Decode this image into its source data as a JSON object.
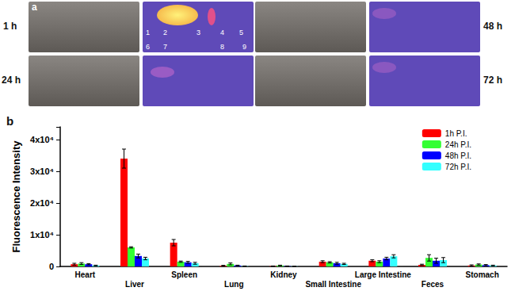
{
  "panel_a": {
    "label": "a",
    "time_labels": [
      "1 h",
      "24 h",
      "48 h",
      "72 h"
    ],
    "organ_numbers": [
      "1",
      "2",
      "3",
      "4",
      "5",
      "6",
      "7",
      "8",
      "9"
    ]
  },
  "chart_data": {
    "type": "bar",
    "panel_label": "b",
    "y_label": "Fluorescence Intensity",
    "categories": [
      "Heart",
      "Liver",
      "Spleen",
      "Lung",
      "Kidney",
      "Small Intestine",
      "Large Intestine",
      "Feces",
      "Stomach"
    ],
    "series": [
      {
        "name": "1h P.I.",
        "color": "#ff0000",
        "values": [
          700,
          34000,
          7500,
          200,
          100,
          1500,
          1800,
          500,
          300
        ],
        "errors": [
          300,
          3000,
          1000,
          150,
          50,
          300,
          300,
          200,
          200
        ]
      },
      {
        "name": "24h P.I.",
        "color": "#33ff33",
        "values": [
          900,
          6000,
          1500,
          800,
          300,
          1300,
          1500,
          2700,
          600
        ],
        "errors": [
          300,
          200,
          200,
          300,
          100,
          200,
          300,
          1000,
          200
        ]
      },
      {
        "name": "48h P.I.",
        "color": "#0000ff",
        "values": [
          700,
          3300,
          1300,
          300,
          100,
          1000,
          2500,
          1800,
          400
        ],
        "errors": [
          200,
          600,
          300,
          100,
          50,
          300,
          400,
          800,
          200
        ]
      },
      {
        "name": "72h P.I.",
        "color": "#33ffff",
        "values": [
          300,
          2500,
          1000,
          100,
          50,
          800,
          3200,
          2000,
          300
        ],
        "errors": [
          100,
          400,
          300,
          50,
          30,
          200,
          500,
          800,
          100
        ]
      }
    ],
    "ylim": [
      0,
      44000
    ],
    "yticks": [
      0,
      {
        "value": 10000,
        "label": "1x10⁴"
      },
      {
        "value": 20000,
        "label": "2x10⁴"
      },
      {
        "value": 30000,
        "label": "3x10⁴"
      },
      {
        "value": 40000,
        "label": "4x10⁴"
      }
    ],
    "legend": "upper right",
    "grid": false
  }
}
